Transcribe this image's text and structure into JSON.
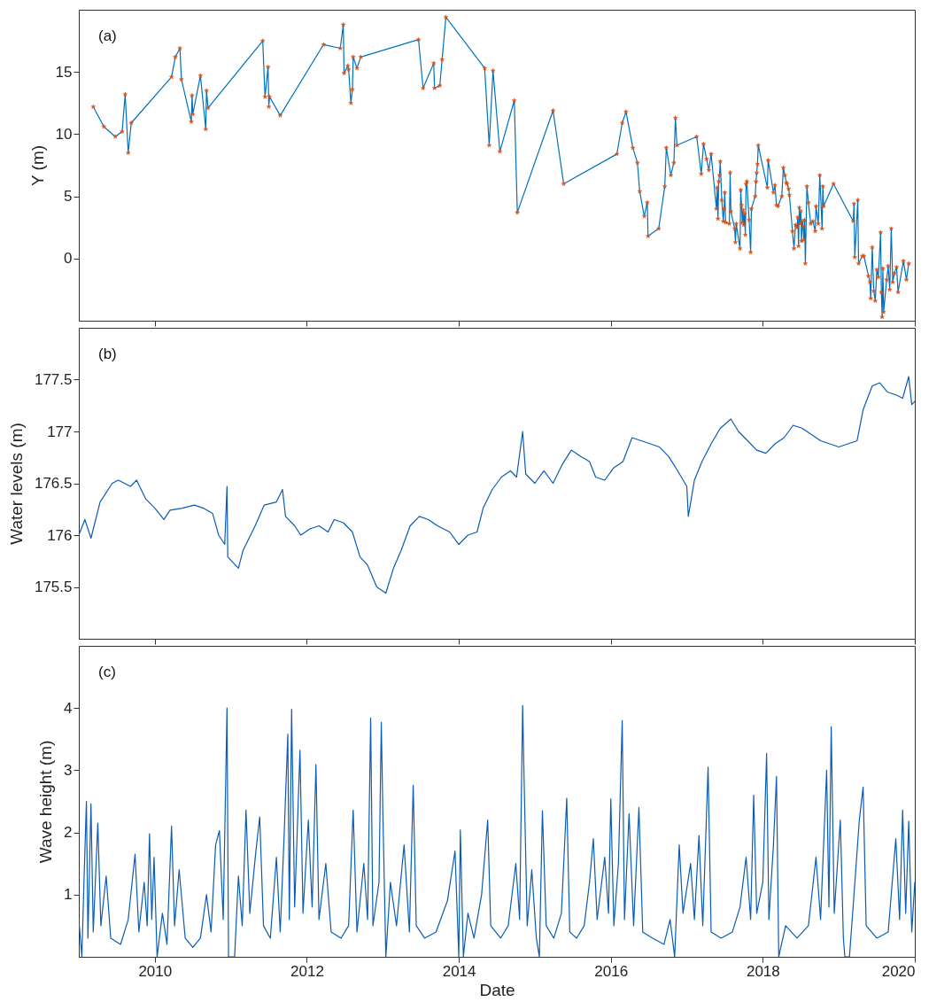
{
  "chart_data": [
    {
      "type": "line",
      "ylabel": "Y (m)",
      "annotations": [
        "(a)"
      ],
      "xlim": [
        2009,
        2020
      ],
      "xticks": [
        2010,
        2012,
        2014,
        2016,
        2018,
        2020
      ],
      "ylim": [
        -5,
        20
      ],
      "yticks": [
        0,
        5,
        10,
        15
      ],
      "tick_labels": "y",
      "grid": false,
      "x": [
        2009.19,
        2009.33,
        2009.48,
        2009.57,
        2009.61,
        2009.65,
        2009.69,
        2010.22,
        2010.27,
        2010.33,
        2010.35,
        2010.48,
        2010.49,
        2010.5,
        2010.6,
        2010.67,
        2010.68,
        2010.7,
        2011.42,
        2011.45,
        2011.49,
        2011.5,
        2011.51,
        2011.65,
        2012.22,
        2012.44,
        2012.48,
        2012.49,
        2012.54,
        2012.55,
        2012.58,
        2012.6,
        2012.61,
        2012.66,
        2012.71,
        2013.47,
        2013.53,
        2013.67,
        2013.68,
        2013.75,
        2013.78,
        2013.83,
        2014.34,
        2014.4,
        2014.45,
        2014.54,
        2014.73,
        2014.77,
        2015.24,
        2015.38,
        2016.08,
        2016.15,
        2016.2,
        2016.29,
        2016.35,
        2016.38,
        2016.44,
        2016.48,
        2016.49,
        2016.63,
        2016.71,
        2016.73,
        2016.79,
        2016.83,
        2016.85,
        2016.87,
        2017.13,
        2017.19,
        2017.22,
        2017.26,
        2017.29,
        2017.32,
        2017.39,
        2017.4,
        2017.41,
        2017.42,
        2017.43,
        2017.44,
        2017.46,
        2017.48,
        2017.49,
        2017.5,
        2017.51,
        2017.56,
        2017.57,
        2017.58,
        2017.63,
        2017.64,
        2017.65,
        2017.7,
        2017.71,
        2017.72,
        2017.73,
        2017.74,
        2017.75,
        2017.76,
        2017.77,
        2017.78,
        2017.79,
        2017.82,
        2017.84,
        2017.85,
        2017.9,
        2017.91,
        2017.92,
        2017.93,
        2017.94,
        2018.06,
        2018.07,
        2018.14,
        2018.16,
        2018.18,
        2018.2,
        2018.25,
        2018.27,
        2018.29,
        2018.31,
        2018.32,
        2018.34,
        2018.35,
        2018.39,
        2018.41,
        2018.43,
        2018.45,
        2018.46,
        2018.47,
        2018.48,
        2018.49,
        2018.5,
        2018.51,
        2018.52,
        2018.53,
        2018.54,
        2018.55,
        2018.56,
        2018.58,
        2018.6,
        2018.63,
        2018.66,
        2018.69,
        2018.7,
        2018.73,
        2018.75,
        2018.78,
        2018.79,
        2018.8,
        2018.93,
        2019.19,
        2019.2,
        2019.21,
        2019.25,
        2019.26,
        2019.31,
        2019.33,
        2019.39,
        2019.41,
        2019.42,
        2019.44,
        2019.46,
        2019.48,
        2019.5,
        2019.52,
        2019.55,
        2019.56,
        2019.57,
        2019.58,
        2019.59,
        2019.63,
        2019.65,
        2019.67,
        2019.69,
        2019.71,
        2019.73,
        2019.76,
        2019.78,
        2019.85,
        2019.89,
        2019.92
      ],
      "series": [
        {
          "type": "line",
          "color": "#0072bd",
          "line_style": "solid",
          "marker": "none",
          "values": [
            12.2,
            10.6,
            9.8,
            10.2,
            13.2,
            8.5,
            10.9,
            14.6,
            16.2,
            16.9,
            14.4,
            11.0,
            13.1,
            11.6,
            14.7,
            10.4,
            13.5,
            12.1,
            17.5,
            13.0,
            15.4,
            12.2,
            13.0,
            11.5,
            17.2,
            16.9,
            18.8,
            14.9,
            15.5,
            15.2,
            12.5,
            13.6,
            16.2,
            15.3,
            16.2,
            17.6,
            13.7,
            15.7,
            13.7,
            13.9,
            16.0,
            19.4,
            15.3,
            9.1,
            15.1,
            8.6,
            12.7,
            3.7,
            11.9,
            6.0,
            8.4,
            10.9,
            11.8,
            8.9,
            7.7,
            5.4,
            3.4,
            4.5,
            1.8,
            2.4,
            5.8,
            8.9,
            6.7,
            7.7,
            11.3,
            9.1,
            9.8,
            6.8,
            9.2,
            8.0,
            7.1,
            8.4,
            4.0,
            5.7,
            3.2,
            6.2,
            6.7,
            7.8,
            4.7,
            3.0,
            4.0,
            5.3,
            2.9,
            2.8,
            6.9,
            3.8,
            2.4,
            1.3,
            2.8,
            0.8,
            5.5,
            4.3,
            2.9,
            3.9,
            2.7,
            3.6,
            1.9,
            6.0,
            6.2,
            3.1,
            0.5,
            4.0,
            5.0,
            6.2,
            6.9,
            7.6,
            9.1,
            5.7,
            7.9,
            5.3,
            5.9,
            4.3,
            4.2,
            5.0,
            7.3,
            6.7,
            6.1,
            6.0,
            5.6,
            5.1,
            2.2,
            0.8,
            2.7,
            2.5,
            3.3,
            1.0,
            4.1,
            2.8,
            3.8,
            1.4,
            3.0,
            2.6,
            1.5,
            3.1,
            -0.4,
            5.8,
            4.5,
            2.8,
            3.0,
            2.2,
            4.2,
            2.8,
            6.7,
            2.4,
            5.8,
            4.2,
            6.0,
            3.0,
            4.4,
            0.1,
            4.7,
            -0.4,
            0.2,
            0.2,
            -1.4,
            -1.9,
            -3.2,
            0.9,
            -2.6,
            -3.4,
            -0.9,
            -1.5,
            2.1,
            -2.7,
            -4.7,
            -0.8,
            -4.3,
            -1.7,
            -0.6,
            -2.5,
            2.4,
            -1.9,
            -1.2,
            -0.7,
            -2.7,
            -0.2,
            -1.7,
            -0.4
          ]
        },
        {
          "type": "scatter",
          "color": "#d95319",
          "marker": "star",
          "values": [
            12.2,
            10.6,
            9.8,
            10.2,
            13.2,
            8.5,
            10.9,
            14.6,
            16.2,
            16.9,
            14.4,
            11.0,
            13.1,
            11.6,
            14.7,
            10.4,
            13.5,
            12.1,
            17.5,
            13.0,
            15.4,
            12.2,
            13.0,
            11.5,
            17.2,
            16.9,
            18.8,
            14.9,
            15.5,
            15.2,
            12.5,
            13.6,
            16.2,
            15.3,
            16.2,
            17.6,
            13.7,
            15.7,
            13.7,
            13.9,
            16.0,
            19.4,
            15.3,
            9.1,
            15.1,
            8.6,
            12.7,
            3.7,
            11.9,
            6.0,
            8.4,
            10.9,
            11.8,
            8.9,
            7.7,
            5.4,
            3.4,
            4.5,
            1.8,
            2.4,
            5.8,
            8.9,
            6.7,
            7.7,
            11.3,
            9.1,
            9.8,
            6.8,
            9.2,
            8.0,
            7.1,
            8.4,
            4.0,
            5.7,
            3.2,
            6.2,
            6.7,
            7.8,
            4.7,
            3.0,
            4.0,
            5.3,
            2.9,
            2.8,
            6.9,
            3.8,
            2.4,
            1.3,
            2.8,
            0.8,
            5.5,
            4.3,
            2.9,
            3.9,
            2.7,
            3.6,
            1.9,
            6.0,
            6.2,
            3.1,
            0.5,
            4.0,
            5.0,
            6.2,
            6.9,
            7.6,
            9.1,
            5.7,
            7.9,
            5.3,
            5.9,
            4.3,
            4.2,
            5.0,
            7.3,
            6.7,
            6.1,
            6.0,
            5.6,
            5.1,
            2.2,
            0.8,
            2.7,
            2.5,
            3.3,
            1.0,
            4.1,
            2.8,
            3.8,
            1.4,
            3.0,
            2.6,
            1.5,
            3.1,
            -0.4,
            5.8,
            4.5,
            2.8,
            3.0,
            2.2,
            4.2,
            2.8,
            6.7,
            2.4,
            5.8,
            4.2,
            6.0,
            3.0,
            4.4,
            0.1,
            4.7,
            -0.4,
            0.2,
            0.2,
            -1.4,
            -1.9,
            -3.2,
            0.9,
            -2.6,
            -3.4,
            -0.9,
            -1.5,
            2.1,
            -2.7,
            -4.7,
            -0.8,
            -4.3,
            -1.7,
            -0.6,
            -2.5,
            2.4,
            -1.9,
            -1.2,
            -0.7,
            -2.7,
            -0.2,
            -1.7,
            -0.4
          ]
        }
      ]
    },
    {
      "type": "line",
      "ylabel": "Water levels (m)",
      "annotations": [
        "(b)"
      ],
      "xlim": [
        2009,
        2020
      ],
      "xticks": [
        2010,
        2012,
        2014,
        2016,
        2018,
        2020
      ],
      "ylim": [
        175,
        178
      ],
      "yticks": [
        175.5,
        176,
        176.5,
        177,
        177.5
      ],
      "tick_labels": "y",
      "grid": false,
      "x": [
        2009.0,
        2009.08,
        2009.16,
        2009.28,
        2009.44,
        2009.52,
        2009.68,
        2009.76,
        2009.88,
        2010.0,
        2010.12,
        2010.2,
        2010.36,
        2010.52,
        2010.64,
        2010.76,
        2010.84,
        2010.92,
        2010.95,
        2010.96,
        2011.1,
        2011.16,
        2011.32,
        2011.44,
        2011.6,
        2011.68,
        2011.72,
        2011.84,
        2011.92,
        2012.04,
        2012.16,
        2012.28,
        2012.36,
        2012.48,
        2012.6,
        2012.7,
        2012.8,
        2012.92,
        2013.04,
        2013.14,
        2013.24,
        2013.36,
        2013.48,
        2013.6,
        2013.72,
        2013.88,
        2014.0,
        2014.12,
        2014.24,
        2014.32,
        2014.44,
        2014.56,
        2014.68,
        2014.76,
        2014.84,
        2014.88,
        2015.0,
        2015.12,
        2015.24,
        2015.36,
        2015.48,
        2015.6,
        2015.72,
        2015.8,
        2015.92,
        2016.04,
        2016.16,
        2016.28,
        2016.4,
        2016.52,
        2016.64,
        2016.76,
        2016.88,
        2017.0,
        2017.02,
        2017.1,
        2017.2,
        2017.32,
        2017.44,
        2017.58,
        2017.68,
        2017.8,
        2017.92,
        2018.04,
        2018.16,
        2018.28,
        2018.4,
        2018.52,
        2018.64,
        2018.76,
        2018.88,
        2019.0,
        2019.12,
        2019.24,
        2019.32,
        2019.44,
        2019.54,
        2019.64,
        2019.76,
        2019.84,
        2019.92,
        2019.96,
        2020.0
      ],
      "series": [
        {
          "type": "line",
          "color": "#0b5cb5",
          "line_style": "solid",
          "marker": "none",
          "values": [
            176.0,
            176.15,
            175.97,
            176.32,
            176.5,
            176.53,
            176.47,
            176.53,
            176.35,
            176.26,
            176.15,
            176.24,
            176.26,
            176.29,
            176.26,
            176.21,
            176.0,
            175.91,
            176.47,
            175.79,
            175.68,
            175.85,
            176.09,
            176.29,
            176.32,
            176.44,
            176.18,
            176.09,
            176.0,
            176.06,
            176.09,
            176.03,
            176.15,
            176.12,
            176.03,
            175.79,
            175.71,
            175.5,
            175.44,
            175.68,
            175.85,
            176.09,
            176.18,
            176.15,
            176.09,
            176.03,
            175.91,
            176.0,
            176.03,
            176.26,
            176.44,
            176.56,
            176.62,
            176.56,
            177.0,
            176.59,
            176.5,
            176.62,
            176.5,
            176.68,
            176.82,
            176.76,
            176.71,
            176.56,
            176.53,
            176.65,
            176.71,
            176.94,
            176.91,
            176.88,
            176.85,
            176.76,
            176.62,
            176.47,
            176.18,
            176.53,
            176.71,
            176.88,
            177.03,
            177.12,
            177.0,
            176.91,
            176.82,
            176.79,
            176.88,
            176.94,
            177.06,
            177.03,
            176.97,
            176.91,
            176.88,
            176.85,
            176.88,
            176.91,
            177.21,
            177.44,
            177.47,
            177.38,
            177.35,
            177.32,
            177.53,
            177.26,
            177.29
          ]
        }
      ]
    },
    {
      "type": "line",
      "xlabel": "Date",
      "ylabel": "Wave height (m)",
      "annotations": [
        "(c)"
      ],
      "xlim": [
        2009,
        2020
      ],
      "xticks": [
        2010,
        2012,
        2014,
        2016,
        2018,
        2020
      ],
      "ylim": [
        0,
        5
      ],
      "yticks": [
        1,
        2,
        3,
        4
      ],
      "grid": false,
      "x": [
        2009.0,
        2009.04,
        2009.07,
        2009.1,
        2009.12,
        2009.16,
        2009.19,
        2009.25,
        2009.29,
        2009.36,
        2009.42,
        2009.55,
        2009.65,
        2009.74,
        2009.79,
        2009.86,
        2009.9,
        2009.93,
        2009.96,
        2009.99,
        2010.03,
        2010.1,
        2010.16,
        2010.22,
        2010.26,
        2010.32,
        2010.4,
        2010.5,
        2010.6,
        2010.68,
        2010.74,
        2010.8,
        2010.85,
        2010.9,
        2010.95,
        2010.97,
        2011.05,
        2011.1,
        2011.15,
        2011.2,
        2011.25,
        2011.33,
        2011.38,
        2011.43,
        2011.52,
        2011.6,
        2011.65,
        2011.7,
        2011.75,
        2011.77,
        2011.8,
        2011.84,
        2011.91,
        2011.95,
        2012.02,
        2012.07,
        2012.12,
        2012.16,
        2012.25,
        2012.32,
        2012.45,
        2012.55,
        2012.61,
        2012.66,
        2012.75,
        2012.8,
        2012.84,
        2012.87,
        2012.95,
        2012.98,
        2013.0,
        2013.04,
        2013.1,
        2013.18,
        2013.28,
        2013.35,
        2013.4,
        2013.44,
        2013.55,
        2013.7,
        2013.85,
        2013.95,
        2014.0,
        2014.02,
        2014.06,
        2014.12,
        2014.2,
        2014.3,
        2014.38,
        2014.42,
        2014.55,
        2014.65,
        2014.75,
        2014.8,
        2014.84,
        2014.86,
        2014.9,
        2014.96,
        2015.02,
        2015.06,
        2015.1,
        2015.15,
        2015.25,
        2015.35,
        2015.42,
        2015.46,
        2015.55,
        2015.65,
        2015.72,
        2015.77,
        2015.82,
        2015.92,
        2015.97,
        2016.0,
        2016.04,
        2016.1,
        2016.15,
        2016.18,
        2016.24,
        2016.3,
        2016.37,
        2016.42,
        2016.55,
        2016.7,
        2016.78,
        2016.84,
        2016.9,
        2016.95,
        2017.05,
        2017.1,
        2017.16,
        2017.21,
        2017.28,
        2017.32,
        2017.45,
        2017.6,
        2017.7,
        2017.78,
        2017.84,
        2017.88,
        2017.92,
        2018.0,
        2018.05,
        2018.08,
        2018.14,
        2018.18,
        2018.21,
        2018.3,
        2018.45,
        2018.6,
        2018.7,
        2018.76,
        2018.84,
        2018.87,
        2018.9,
        2018.94,
        2019.02,
        2019.06,
        2019.08,
        2019.14,
        2019.2,
        2019.27,
        2019.32,
        2019.36,
        2019.5,
        2019.65,
        2019.75,
        2019.8,
        2019.84,
        2019.88,
        2019.92,
        2019.96,
        2020.0
      ],
      "series": [
        {
          "type": "line",
          "color": "#0b5cb5",
          "line_style": "solid",
          "marker": "none",
          "values": [
            0.6,
            0,
            1.3,
            2.5,
            0.3,
            2.46,
            0.4,
            2.15,
            0.5,
            1.3,
            0.3,
            0.2,
            0.6,
            1.65,
            0.4,
            1.2,
            0.5,
            1.98,
            0.6,
            1.6,
            0,
            0.7,
            0.2,
            2.1,
            0.5,
            1.4,
            0.3,
            0.15,
            0.3,
            1.0,
            0.4,
            1.8,
            2.03,
            0.6,
            4.0,
            0,
            0,
            1.3,
            0.5,
            2.36,
            0.7,
            1.7,
            2.25,
            0.5,
            0.3,
            1.6,
            0.4,
            1.9,
            3.58,
            0.6,
            3.98,
            0.8,
            3.32,
            0.7,
            2.2,
            0.8,
            3.09,
            0.6,
            1.5,
            0.4,
            0.3,
            0.5,
            2.36,
            0.4,
            1.5,
            0.6,
            3.84,
            0.5,
            1.2,
            3.77,
            2.35,
            0,
            1.2,
            0.5,
            1.8,
            0.4,
            2.76,
            0.5,
            0.3,
            0.4,
            0.9,
            1.7,
            0,
            2.04,
            0,
            0.7,
            0.3,
            1.0,
            2.2,
            0.5,
            0.3,
            0.5,
            1.5,
            0.6,
            4.04,
            2.8,
            0.5,
            1.4,
            0.3,
            0,
            2.35,
            0.5,
            0.3,
            0.7,
            2.55,
            0.4,
            0.3,
            0.5,
            1.2,
            1.9,
            0.6,
            1.6,
            0.7,
            2.54,
            0.5,
            1.5,
            3.8,
            0.6,
            2.3,
            0.5,
            2.4,
            0.4,
            0.3,
            0.2,
            0.6,
            0,
            1.8,
            0.7,
            1.5,
            0.6,
            1.95,
            0.5,
            3.05,
            0.4,
            0.3,
            0.4,
            0.8,
            1.6,
            0.6,
            2.6,
            0.7,
            1.2,
            3.27,
            0.6,
            1.8,
            2.9,
            0,
            0.5,
            0.3,
            0.5,
            1.6,
            0.6,
            3.0,
            0.8,
            3.7,
            0.7,
            2.2,
            0.3,
            0,
            0,
            1.0,
            2.2,
            2.73,
            0.5,
            0.3,
            0.4,
            1.9,
            0.6,
            2.36,
            0.7,
            2.18,
            0.4,
            1.2
          ]
        }
      ]
    }
  ]
}
